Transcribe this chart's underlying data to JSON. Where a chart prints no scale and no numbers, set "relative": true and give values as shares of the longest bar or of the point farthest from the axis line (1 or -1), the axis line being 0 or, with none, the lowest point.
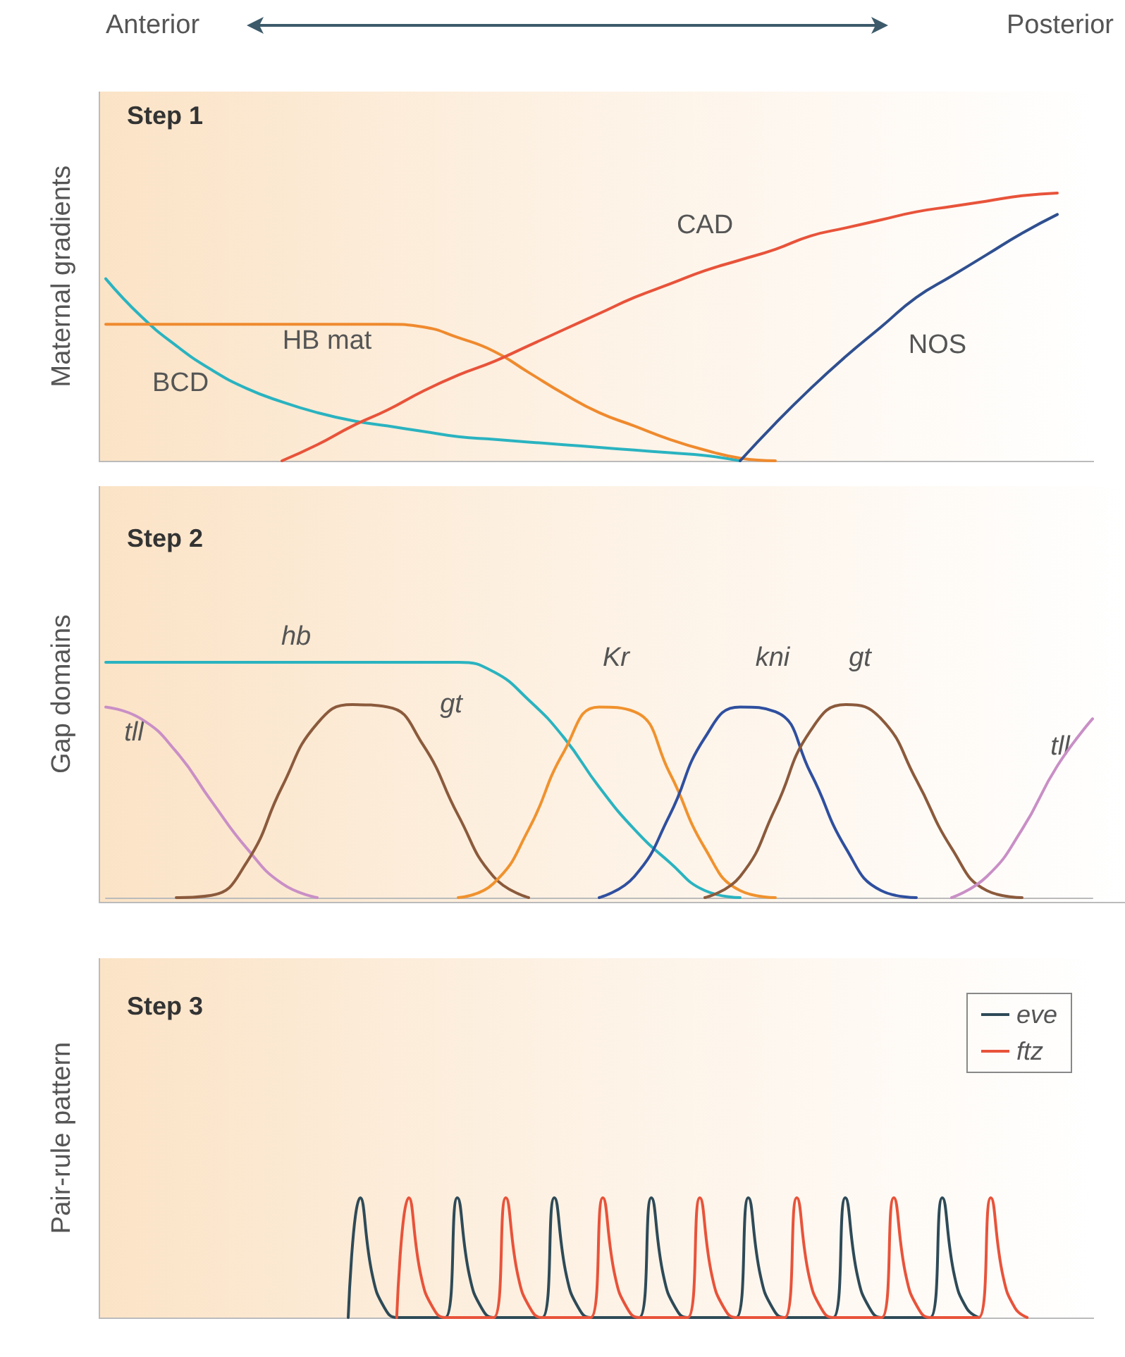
{
  "chart_data": [
    {
      "type": "line",
      "title": "Step 1",
      "ylabel": "Maternal gradients",
      "relative": true,
      "legend": false,
      "marker": "none",
      "line_style": "solid",
      "annotations": [
        "Anterior",
        "Posterior"
      ],
      "categories": [
        null,
        null,
        null,
        null,
        null,
        null,
        null,
        null,
        null,
        null,
        null,
        null,
        null,
        null,
        null,
        null,
        null,
        null,
        null,
        null,
        null,
        null,
        null,
        null,
        null,
        null,
        null,
        null,
        null
      ],
      "series": [
        {
          "name": "BCD",
          "color": "#2ab3c0",
          "values": [
            0.68,
            0.54,
            0.43,
            0.34,
            0.27,
            0.22,
            0.18,
            0.15,
            0.13,
            0.11,
            0.09,
            0.08,
            0.07,
            0.06,
            0.05,
            0.04,
            0.03,
            0.02,
            0,
            null,
            null,
            null,
            null,
            null,
            null,
            null,
            null,
            null,
            null
          ]
        },
        {
          "name": "HB mat",
          "color": "#ef8a2e",
          "values": [
            0.51,
            0.51,
            0.51,
            0.51,
            0.51,
            0.51,
            0.51,
            0.51,
            0.51,
            0.5,
            0.46,
            0.41,
            0.33,
            0.25,
            0.18,
            0.13,
            0.08,
            0.04,
            0.01,
            0,
            null,
            null,
            null,
            null,
            null,
            null,
            null,
            null,
            null
          ]
        },
        {
          "name": "CAD",
          "color": "#e8533a",
          "values": [
            null,
            null,
            null,
            null,
            null,
            0,
            0.06,
            0.13,
            0.19,
            0.26,
            0.32,
            0.37,
            0.43,
            0.49,
            0.55,
            0.61,
            0.66,
            0.71,
            0.75,
            0.79,
            0.84,
            0.87,
            0.9,
            0.93,
            0.95,
            0.97,
            0.99,
            1.0,
            null
          ]
        },
        {
          "name": "NOS",
          "color": "#2f4f8f",
          "values": [
            null,
            null,
            null,
            null,
            null,
            null,
            null,
            null,
            null,
            null,
            null,
            null,
            null,
            null,
            null,
            null,
            null,
            null,
            0,
            0.14,
            0.27,
            0.39,
            0.5,
            0.61,
            0.69,
            0.77,
            0.85,
            0.92,
            null
          ]
        }
      ]
    },
    {
      "type": "line",
      "title": "Step 2",
      "ylabel": "Gap domains",
      "relative": true,
      "legend": false,
      "marker": "none",
      "line_style": "solid",
      "categories": [
        null,
        null,
        null,
        null,
        null,
        null,
        null,
        null,
        null,
        null,
        null,
        null,
        null,
        null,
        null,
        null,
        null,
        null,
        null,
        null,
        null,
        null,
        null,
        null,
        null,
        null,
        null,
        null,
        null
      ],
      "series": [
        {
          "name": "hb",
          "color": "#2ab3c0",
          "values": [
            1,
            1,
            1,
            1,
            1,
            1,
            1,
            1,
            1,
            1,
            1,
            0.96,
            0.84,
            0.68,
            0.47,
            0.29,
            0.15,
            0.03,
            0,
            null,
            null,
            null,
            null,
            null,
            null,
            null,
            null,
            null,
            null
          ]
        },
        {
          "name": "tll",
          "color": "#c98fc6",
          "values": [
            0.81,
            0.76,
            0.62,
            0.41,
            0.21,
            0.06,
            0,
            null,
            null,
            null,
            null,
            null,
            null,
            null,
            null,
            null,
            null,
            null,
            null,
            null,
            null,
            null,
            null,
            null,
            null,
            null,
            null,
            null,
            null
          ]
        },
        {
          "name": "gt",
          "color": "#8b5a3c",
          "values": [
            null,
            null,
            0,
            0.01,
            0.15,
            0.47,
            0.74,
            0.82,
            0.81,
            0.65,
            0.35,
            0.09,
            0,
            null,
            null,
            null,
            null,
            null,
            null,
            null,
            null,
            null,
            null,
            null,
            null,
            null,
            null,
            null,
            null
          ]
        },
        {
          "name": "Kr",
          "color": "#f0922e",
          "values": [
            null,
            null,
            null,
            null,
            null,
            null,
            null,
            null,
            null,
            null,
            0,
            0.06,
            0.29,
            0.62,
            0.81,
            0.79,
            0.53,
            0.21,
            0.03,
            0,
            null,
            null,
            null,
            null,
            null,
            null,
            null,
            null,
            null
          ]
        },
        {
          "name": "kni",
          "color": "#2f4f9f",
          "values": [
            null,
            null,
            null,
            null,
            null,
            null,
            null,
            null,
            null,
            null,
            null,
            null,
            null,
            null,
            0,
            0.09,
            0.35,
            0.68,
            0.81,
            0.79,
            0.53,
            0.21,
            0.03,
            0,
            null,
            null,
            null,
            null,
            null
          ]
        },
        {
          "name": "gt",
          "color": "#8b5a3c",
          "values": [
            null,
            null,
            null,
            null,
            null,
            null,
            null,
            null,
            null,
            null,
            null,
            null,
            null,
            null,
            null,
            null,
            null,
            0,
            0.09,
            0.38,
            0.71,
            0.82,
            0.76,
            0.5,
            0.21,
            0.03,
            0,
            null,
            null
          ]
        },
        {
          "name": "tll",
          "color": "#c98fc6",
          "values": [
            null,
            null,
            null,
            null,
            null,
            null,
            null,
            null,
            null,
            null,
            null,
            null,
            null,
            null,
            null,
            null,
            null,
            null,
            null,
            null,
            null,
            null,
            null,
            null,
            0,
            0.09,
            0.29,
            0.56,
            0.76
          ]
        }
      ]
    },
    {
      "type": "line",
      "title": "Step 3",
      "ylabel": "Pair-rule pattern",
      "relative": true,
      "legend": "top right",
      "marker": "none",
      "line_style": "solid",
      "categories": [
        null,
        null,
        null,
        null,
        null,
        null,
        null,
        null,
        null,
        null,
        null,
        null,
        null,
        null,
        null,
        null,
        null,
        null,
        null,
        null,
        null,
        null,
        null,
        null,
        null,
        null,
        null,
        null,
        null,
        null,
        null,
        null,
        null,
        null,
        null,
        null,
        null,
        null,
        null,
        null,
        null,
        null,
        null,
        null,
        null,
        null,
        null,
        null,
        null,
        null,
        null,
        null,
        null,
        null,
        null,
        null,
        null,
        null,
        null,
        null,
        null,
        null,
        null,
        null,
        null,
        null,
        null,
        null,
        null,
        null,
        null,
        null,
        null,
        null,
        null,
        null,
        null,
        null,
        null,
        null,
        null
      ],
      "series": [
        {
          "name": "eve",
          "color": "#2e4a57",
          "values": [
            null,
            null,
            null,
            null,
            null,
            null,
            null,
            null,
            null,
            null,
            null,
            null,
            null,
            null,
            null,
            null,
            null,
            null,
            null,
            null,
            0,
            1,
            0.35,
            0.08,
            0,
            0,
            0,
            0,
            0,
            1,
            0.35,
            0.08,
            0,
            0,
            0,
            0,
            0,
            1,
            0.35,
            0.08,
            0,
            0,
            0,
            0,
            0,
            1,
            0.35,
            0.08,
            0,
            0,
            0,
            0,
            0,
            1,
            0.35,
            0.08,
            0,
            0,
            0,
            0,
            0,
            1,
            0.35,
            0.08,
            0,
            0,
            0,
            0,
            0,
            1,
            0.35,
            0.08,
            0,
            null,
            null,
            null,
            null,
            null,
            null,
            null,
            null
          ]
        },
        {
          "name": "ftz",
          "color": "#e8533a",
          "values": [
            null,
            null,
            null,
            null,
            null,
            null,
            null,
            null,
            null,
            null,
            null,
            null,
            null,
            null,
            null,
            null,
            null,
            null,
            null,
            null,
            null,
            null,
            null,
            null,
            0,
            1,
            0.35,
            0.08,
            0,
            0,
            0,
            0,
            0,
            1,
            0.35,
            0.08,
            0,
            0,
            0,
            0,
            0,
            1,
            0.35,
            0.08,
            0,
            0,
            0,
            0,
            0,
            1,
            0.35,
            0.08,
            0,
            0,
            0,
            0,
            0,
            1,
            0.35,
            0.08,
            0,
            0,
            0,
            0,
            0,
            1,
            0.35,
            0.08,
            0,
            0,
            0,
            0,
            0,
            1,
            0.35,
            0.08,
            0,
            null,
            null,
            null,
            null
          ]
        }
      ]
    }
  ]
}
